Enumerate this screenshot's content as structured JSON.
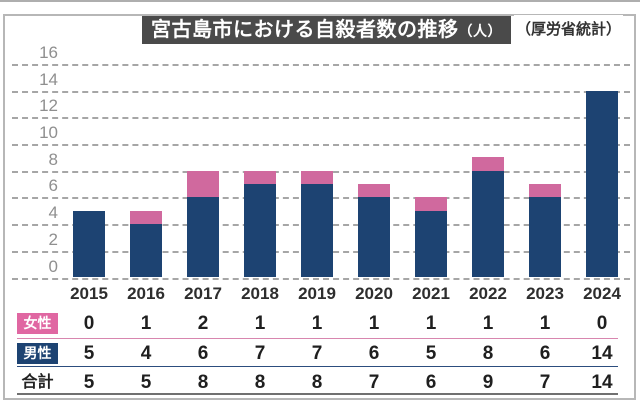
{
  "header": {
    "title": "宮古島市における自殺者数の推移",
    "title_unit": "（人）",
    "source_note": "（厚労省統計）",
    "title_bg": "#4a4a4a",
    "title_text_color": "#ffffff"
  },
  "chart_data": {
    "type": "bar",
    "stacked": true,
    "title": "宮古島市における自殺者数の推移（人）",
    "source": "厚労省統計",
    "categories": [
      "2015",
      "2016",
      "2017",
      "2018",
      "2019",
      "2020",
      "2021",
      "2022",
      "2023",
      "2024"
    ],
    "series": [
      {
        "name": "女性",
        "color": "#d0699e",
        "values": [
          0,
          1,
          2,
          1,
          1,
          1,
          1,
          1,
          1,
          0
        ]
      },
      {
        "name": "男性",
        "color": "#1d4372",
        "values": [
          5,
          4,
          6,
          7,
          7,
          6,
          5,
          8,
          6,
          14
        ]
      }
    ],
    "totals": {
      "label": "合計",
      "values": [
        5,
        5,
        8,
        8,
        8,
        7,
        6,
        9,
        7,
        14
      ]
    },
    "ylim": [
      0,
      16
    ],
    "yticks": [
      0,
      2,
      4,
      6,
      8,
      10,
      12,
      14,
      16
    ],
    "grid": "horizontal-dashed",
    "legend": "table-below-chart"
  },
  "table": {
    "row_labels": [
      "女性",
      "男性",
      "合計"
    ],
    "label_bg_colors": [
      "#e067a2",
      "#1d4372",
      "transparent"
    ],
    "label_text_colors": [
      "#ffffff",
      "#ffffff",
      "#222222"
    ],
    "underline_colors": [
      "#d886af",
      "#2c4d7e",
      "#707070"
    ]
  },
  "colors": {
    "grid": "#a6a6a6",
    "axis_text": "#8f8f8f",
    "year_text": "#2e2e2e",
    "frame_border": "#b7b7b7"
  }
}
